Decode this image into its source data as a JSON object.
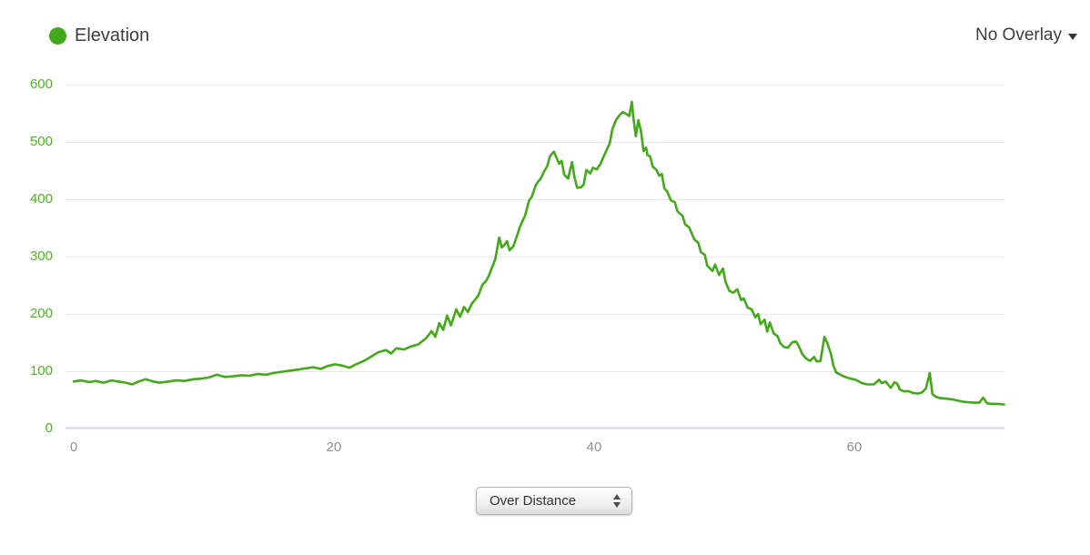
{
  "legend": {
    "series_label": "Elevation"
  },
  "overlay_menu": {
    "label": "No Overlay"
  },
  "controls": {
    "mode_select": {
      "value": "Over Distance"
    }
  },
  "colors": {
    "series_green": "#43a81a",
    "tick_green": "#52ae27",
    "grid_gray": "#e8e8e8",
    "axis_zero": "#dde3f2",
    "xlabel_gray": "#8f9094",
    "text_dark": "#3d3d3d"
  },
  "chart_data": {
    "type": "line",
    "title": "",
    "xlabel": "",
    "ylabel": "",
    "grid": "horizontal",
    "legend_position": "top-left",
    "xlim": [
      0,
      71.5
    ],
    "ylim": [
      0,
      600
    ],
    "x_ticks": [
      0,
      20,
      40,
      60
    ],
    "y_ticks": [
      0,
      100,
      200,
      300,
      400,
      500,
      600
    ],
    "series": [
      {
        "name": "Elevation",
        "color": "#43a81a",
        "points": [
          [
            0,
            82
          ],
          [
            0.6,
            84
          ],
          [
            1.2,
            81
          ],
          [
            1.7,
            83
          ],
          [
            2.3,
            80
          ],
          [
            2.9,
            84
          ],
          [
            3.4,
            82
          ],
          [
            4,
            80
          ],
          [
            4.5,
            77
          ],
          [
            5,
            82
          ],
          [
            5.5,
            86
          ],
          [
            6.1,
            82
          ],
          [
            6.6,
            80
          ],
          [
            7.3,
            82
          ],
          [
            7.9,
            84
          ],
          [
            8.5,
            83
          ],
          [
            9.2,
            86
          ],
          [
            9.8,
            87
          ],
          [
            10.4,
            89
          ],
          [
            11,
            94
          ],
          [
            11.6,
            90
          ],
          [
            12.2,
            91
          ],
          [
            12.9,
            93
          ],
          [
            13.5,
            92
          ],
          [
            14.1,
            95
          ],
          [
            14.8,
            94
          ],
          [
            15.4,
            97
          ],
          [
            16,
            99
          ],
          [
            16.6,
            101
          ],
          [
            17.3,
            103
          ],
          [
            17.8,
            105
          ],
          [
            18.4,
            107
          ],
          [
            19,
            104
          ],
          [
            19.5,
            109
          ],
          [
            20.1,
            112
          ],
          [
            20.6,
            110
          ],
          [
            21.2,
            106
          ],
          [
            21.7,
            112
          ],
          [
            22.3,
            118
          ],
          [
            22.9,
            126
          ],
          [
            23.4,
            133
          ],
          [
            24,
            137
          ],
          [
            24.4,
            131
          ],
          [
            24.8,
            140
          ],
          [
            25.4,
            138
          ],
          [
            25.9,
            143
          ],
          [
            26.5,
            147
          ],
          [
            27.1,
            158
          ],
          [
            27.5,
            170
          ],
          [
            27.8,
            160
          ],
          [
            28.1,
            184
          ],
          [
            28.4,
            172
          ],
          [
            28.7,
            197
          ],
          [
            29,
            180
          ],
          [
            29.4,
            208
          ],
          [
            29.7,
            195
          ],
          [
            30,
            212
          ],
          [
            30.3,
            203
          ],
          [
            30.6,
            218
          ],
          [
            30.9,
            226
          ],
          [
            31.1,
            232
          ],
          [
            31.4,
            250
          ],
          [
            31.7,
            258
          ],
          [
            31.9,
            266
          ],
          [
            32.1,
            278
          ],
          [
            32.4,
            295
          ],
          [
            32.7,
            333
          ],
          [
            32.9,
            316
          ],
          [
            33.1,
            320
          ],
          [
            33.3,
            327
          ],
          [
            33.5,
            311
          ],
          [
            33.8,
            318
          ],
          [
            34.1,
            338
          ],
          [
            34.3,
            352
          ],
          [
            34.7,
            372
          ],
          [
            35,
            398
          ],
          [
            35.2,
            404
          ],
          [
            35.5,
            424
          ],
          [
            35.7,
            431
          ],
          [
            35.9,
            436
          ],
          [
            36.1,
            446
          ],
          [
            36.4,
            458
          ],
          [
            36.6,
            475
          ],
          [
            36.9,
            483
          ],
          [
            37.1,
            473
          ],
          [
            37.3,
            462
          ],
          [
            37.5,
            467
          ],
          [
            37.7,
            443
          ],
          [
            38,
            436
          ],
          [
            38.3,
            465
          ],
          [
            38.5,
            437
          ],
          [
            38.7,
            420
          ],
          [
            39,
            421
          ],
          [
            39.2,
            426
          ],
          [
            39.4,
            451
          ],
          [
            39.7,
            445
          ],
          [
            39.9,
            455
          ],
          [
            40.2,
            452
          ],
          [
            40.5,
            462
          ],
          [
            40.7,
            473
          ],
          [
            41,
            488
          ],
          [
            41.2,
            498
          ],
          [
            41.4,
            522
          ],
          [
            41.7,
            539
          ],
          [
            42,
            548
          ],
          [
            42.2,
            552
          ],
          [
            42.4,
            550
          ],
          [
            42.7,
            545
          ],
          [
            42.9,
            570
          ],
          [
            43,
            545
          ],
          [
            43.2,
            510
          ],
          [
            43.4,
            538
          ],
          [
            43.6,
            519
          ],
          [
            43.8,
            484
          ],
          [
            44,
            490
          ],
          [
            44.1,
            477
          ],
          [
            44.3,
            475
          ],
          [
            44.5,
            457
          ],
          [
            44.8,
            451
          ],
          [
            45,
            441
          ],
          [
            45.2,
            444
          ],
          [
            45.4,
            419
          ],
          [
            45.6,
            414
          ],
          [
            45.9,
            398
          ],
          [
            46.2,
            395
          ],
          [
            46.4,
            379
          ],
          [
            46.8,
            371
          ],
          [
            47,
            356
          ],
          [
            47.3,
            351
          ],
          [
            47.7,
            330
          ],
          [
            48,
            324
          ],
          [
            48.2,
            308
          ],
          [
            48.5,
            303
          ],
          [
            48.7,
            284
          ],
          [
            49.1,
            275
          ],
          [
            49.3,
            286
          ],
          [
            49.6,
            268
          ],
          [
            49.9,
            279
          ],
          [
            50.1,
            256
          ],
          [
            50.4,
            240
          ],
          [
            50.7,
            237
          ],
          [
            51,
            243
          ],
          [
            51.3,
            224
          ],
          [
            51.5,
            227
          ],
          [
            51.8,
            211
          ],
          [
            52.1,
            208
          ],
          [
            52.4,
            194
          ],
          [
            52.6,
            200
          ],
          [
            52.8,
            182
          ],
          [
            53.1,
            190
          ],
          [
            53.3,
            169
          ],
          [
            53.5,
            185
          ],
          [
            53.8,
            166
          ],
          [
            54.1,
            161
          ],
          [
            54.3,
            149
          ],
          [
            54.6,
            142
          ],
          [
            54.9,
            141
          ],
          [
            55.2,
            150
          ],
          [
            55.5,
            152
          ],
          [
            55.7,
            145
          ],
          [
            56,
            130
          ],
          [
            56.3,
            122
          ],
          [
            56.6,
            118
          ],
          [
            56.9,
            125
          ],
          [
            57.1,
            117
          ],
          [
            57.4,
            118
          ],
          [
            57.7,
            160
          ],
          [
            57.9,
            150
          ],
          [
            58.2,
            130
          ],
          [
            58.4,
            109
          ],
          [
            58.6,
            98
          ],
          [
            59,
            93
          ],
          [
            59.3,
            90
          ],
          [
            59.7,
            87
          ],
          [
            60.1,
            85
          ],
          [
            60.6,
            79
          ],
          [
            61,
            77
          ],
          [
            61.5,
            77
          ],
          [
            61.9,
            85
          ],
          [
            62.1,
            79
          ],
          [
            62.4,
            82
          ],
          [
            62.8,
            71
          ],
          [
            63.1,
            81
          ],
          [
            63.3,
            78
          ],
          [
            63.5,
            68
          ],
          [
            63.8,
            65
          ],
          [
            64.2,
            65
          ],
          [
            64.5,
            62
          ],
          [
            64.9,
            61
          ],
          [
            65.2,
            63
          ],
          [
            65.5,
            70
          ],
          [
            65.8,
            97
          ],
          [
            66,
            60
          ],
          [
            66.3,
            55
          ],
          [
            66.6,
            53
          ],
          [
            67.1,
            52
          ],
          [
            67.5,
            51
          ],
          [
            67.9,
            49
          ],
          [
            68.3,
            47
          ],
          [
            68.7,
            46
          ],
          [
            69.2,
            45
          ],
          [
            69.6,
            45
          ],
          [
            69.9,
            54
          ],
          [
            70.2,
            44
          ],
          [
            70.6,
            43
          ],
          [
            71,
            43
          ],
          [
            71.5,
            42
          ]
        ]
      }
    ]
  }
}
